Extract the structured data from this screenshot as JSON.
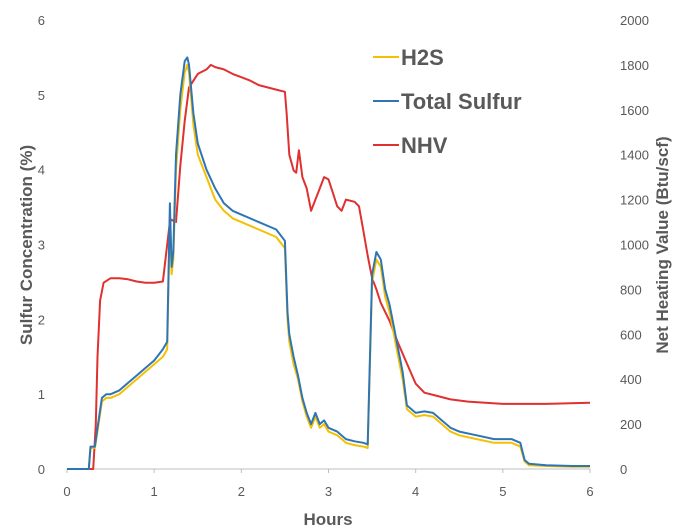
{
  "chart_data": {
    "type": "line",
    "title": "",
    "xlabel": "Hours",
    "ylabel": "Sulfur Concentration (%)",
    "y2label": "Net Heating Value (Btu/scf)",
    "xlim": [
      0,
      6
    ],
    "ylim": [
      0,
      6
    ],
    "y2lim": [
      0,
      2000
    ],
    "xticks": [
      "0",
      "1",
      "2",
      "3",
      "4",
      "5",
      "6"
    ],
    "yticks": [
      "0",
      "1",
      "2",
      "3",
      "4",
      "5",
      "6"
    ],
    "y2ticks": [
      "0",
      "200",
      "400",
      "600",
      "800",
      "1000",
      "1200",
      "1400",
      "1600",
      "1800",
      "2000"
    ],
    "grid": false,
    "legend": "top-right",
    "series": [
      {
        "name": "H2S",
        "axis": "left",
        "color": "#F5C000",
        "x": [
          0,
          0.25,
          0.27,
          0.32,
          0.35,
          0.4,
          0.45,
          0.5,
          0.6,
          0.7,
          0.8,
          0.9,
          1.0,
          1.1,
          1.15,
          1.18,
          1.2,
          1.22,
          1.25,
          1.3,
          1.35,
          1.38,
          1.4,
          1.45,
          1.5,
          1.6,
          1.7,
          1.8,
          1.9,
          2.0,
          2.2,
          2.4,
          2.5,
          2.53,
          2.55,
          2.6,
          2.65,
          2.7,
          2.75,
          2.8,
          2.85,
          2.9,
          2.95,
          3.0,
          3.1,
          3.2,
          3.3,
          3.4,
          3.45,
          3.5,
          3.55,
          3.6,
          3.65,
          3.7,
          3.75,
          3.8,
          3.85,
          3.9,
          4.0,
          4.1,
          4.2,
          4.3,
          4.4,
          4.5,
          4.7,
          4.9,
          5.0,
          5.1,
          5.2,
          5.25,
          5.3,
          5.5,
          5.8,
          6.0
        ],
        "values": [
          0.0,
          0.0,
          0.28,
          0.28,
          0.5,
          0.9,
          0.95,
          0.95,
          1.0,
          1.1,
          1.2,
          1.3,
          1.4,
          1.5,
          1.6,
          3.4,
          2.6,
          2.8,
          4.0,
          4.8,
          5.3,
          5.4,
          5.3,
          4.6,
          4.2,
          3.9,
          3.6,
          3.45,
          3.35,
          3.3,
          3.2,
          3.1,
          2.95,
          2.0,
          1.7,
          1.4,
          1.2,
          0.9,
          0.7,
          0.55,
          0.7,
          0.55,
          0.6,
          0.5,
          0.45,
          0.35,
          0.32,
          0.3,
          0.28,
          2.5,
          2.8,
          2.7,
          2.3,
          2.1,
          1.8,
          1.5,
          1.2,
          0.8,
          0.7,
          0.72,
          0.7,
          0.6,
          0.5,
          0.45,
          0.4,
          0.35,
          0.35,
          0.35,
          0.3,
          0.1,
          0.05,
          0.04,
          0.03,
          0.03
        ]
      },
      {
        "name": "Total Sulfur",
        "axis": "left",
        "color": "#2E75B6",
        "x": [
          0,
          0.25,
          0.27,
          0.32,
          0.35,
          0.4,
          0.45,
          0.5,
          0.6,
          0.7,
          0.8,
          0.9,
          1.0,
          1.1,
          1.15,
          1.18,
          1.2,
          1.22,
          1.25,
          1.3,
          1.35,
          1.38,
          1.4,
          1.45,
          1.5,
          1.6,
          1.7,
          1.8,
          1.9,
          2.0,
          2.2,
          2.4,
          2.5,
          2.53,
          2.55,
          2.6,
          2.65,
          2.7,
          2.75,
          2.8,
          2.85,
          2.9,
          2.95,
          3.0,
          3.1,
          3.2,
          3.3,
          3.4,
          3.45,
          3.5,
          3.55,
          3.6,
          3.65,
          3.7,
          3.75,
          3.8,
          3.85,
          3.9,
          4.0,
          4.1,
          4.2,
          4.3,
          4.4,
          4.5,
          4.7,
          4.9,
          5.0,
          5.1,
          5.2,
          5.25,
          5.3,
          5.5,
          5.8,
          6.0
        ],
        "values": [
          0.0,
          0.0,
          0.3,
          0.3,
          0.55,
          0.95,
          1.0,
          1.0,
          1.05,
          1.15,
          1.25,
          1.35,
          1.45,
          1.6,
          1.7,
          3.55,
          2.7,
          2.9,
          4.2,
          5.0,
          5.45,
          5.5,
          5.4,
          4.75,
          4.35,
          4.0,
          3.75,
          3.55,
          3.45,
          3.4,
          3.3,
          3.2,
          3.05,
          2.1,
          1.8,
          1.5,
          1.25,
          0.95,
          0.75,
          0.6,
          0.75,
          0.6,
          0.65,
          0.55,
          0.5,
          0.4,
          0.37,
          0.35,
          0.33,
          2.6,
          2.9,
          2.8,
          2.4,
          2.2,
          1.9,
          1.6,
          1.3,
          0.85,
          0.75,
          0.77,
          0.75,
          0.65,
          0.55,
          0.5,
          0.45,
          0.4,
          0.4,
          0.4,
          0.35,
          0.12,
          0.07,
          0.05,
          0.04,
          0.04
        ]
      },
      {
        "name": "NHV",
        "axis": "right",
        "color": "#E03030",
        "x": [
          0,
          0.3,
          0.33,
          0.35,
          0.38,
          0.42,
          0.5,
          0.6,
          0.7,
          0.8,
          0.9,
          1.0,
          1.1,
          1.15,
          1.18,
          1.2,
          1.25,
          1.3,
          1.35,
          1.4,
          1.5,
          1.6,
          1.65,
          1.7,
          1.8,
          1.9,
          2.0,
          2.1,
          2.2,
          2.3,
          2.4,
          2.5,
          2.52,
          2.55,
          2.6,
          2.63,
          2.66,
          2.7,
          2.75,
          2.8,
          2.85,
          2.9,
          2.95,
          3.0,
          3.05,
          3.1,
          3.15,
          3.2,
          3.3,
          3.35,
          3.4,
          3.45,
          3.5,
          3.55,
          3.6,
          3.7,
          3.8,
          3.9,
          4.0,
          4.1,
          4.2,
          4.4,
          4.6,
          4.8,
          5.0,
          5.5,
          6.0
        ],
        "values": [
          0,
          0,
          200,
          500,
          750,
          830,
          850,
          850,
          845,
          835,
          830,
          830,
          835,
          1000,
          1100,
          1110,
          1100,
          1350,
          1550,
          1700,
          1760,
          1780,
          1800,
          1790,
          1780,
          1760,
          1745,
          1730,
          1710,
          1700,
          1690,
          1680,
          1580,
          1400,
          1330,
          1320,
          1420,
          1300,
          1250,
          1150,
          1200,
          1250,
          1300,
          1290,
          1230,
          1170,
          1150,
          1200,
          1190,
          1170,
          1060,
          950,
          850,
          800,
          740,
          660,
          560,
          470,
          380,
          340,
          330,
          310,
          300,
          295,
          290,
          290,
          295
        ]
      }
    ]
  }
}
